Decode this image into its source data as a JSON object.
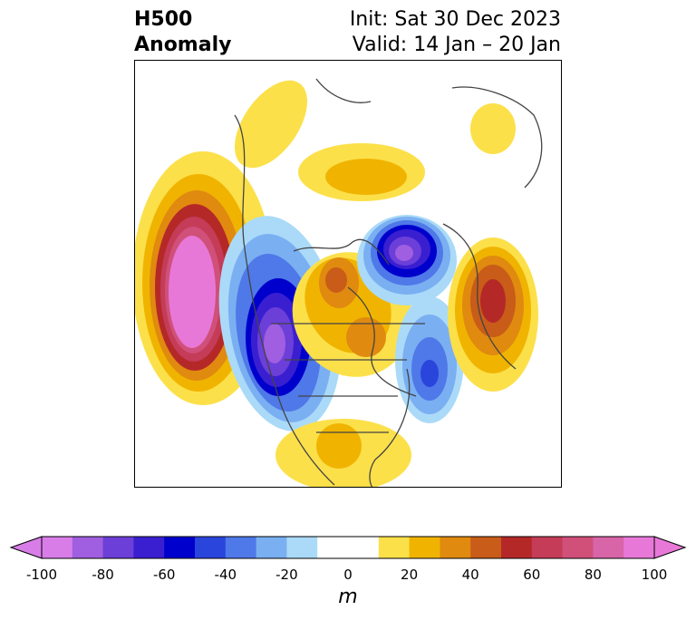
{
  "header": {
    "variable": "H500",
    "subtitle": "Anomaly",
    "init": "Init: Sat 30 Dec 2023",
    "valid": "Valid: 14 Jan – 20 Jan"
  },
  "colorbar": {
    "ticks": [
      "-100",
      "-80",
      "-60",
      "-40",
      "-20",
      "0",
      "20",
      "40",
      "60",
      "80",
      "100"
    ],
    "unit": "m",
    "colors": [
      "#d87de8",
      "#a05ee0",
      "#6b3fd8",
      "#3a1fd0",
      "#0000cc",
      "#2a45dc",
      "#4f78e8",
      "#7aaff2",
      "#aadaf8",
      "#ffffff",
      "#ffffff",
      "#fce04a",
      "#f0b400",
      "#e08a10",
      "#c85c18",
      "#b52828",
      "#c43c58",
      "#d0507a",
      "#d865a8",
      "#e878d8"
    ]
  },
  "map": {
    "region": "North America / Northern Hemisphere polar view",
    "anomaly_centers": [
      {
        "sign": "positive",
        "max_m": 100,
        "location": "NE Pacific / Gulf of Alaska"
      },
      {
        "sign": "negative",
        "min_m": -90,
        "location": "Western Canada / US Northwest"
      },
      {
        "sign": "positive",
        "max_m": 60,
        "location": "Hudson Bay / Baffin"
      },
      {
        "sign": "negative",
        "min_m": -80,
        "location": "Greenland Sea / Arctic"
      },
      {
        "sign": "positive",
        "max_m": 60,
        "location": "Scandinavia / NW Russia"
      },
      {
        "sign": "negative",
        "min_m": -40,
        "location": "North Atlantic"
      },
      {
        "sign": "positive",
        "max_m": 30,
        "location": "Southeast US"
      }
    ]
  }
}
